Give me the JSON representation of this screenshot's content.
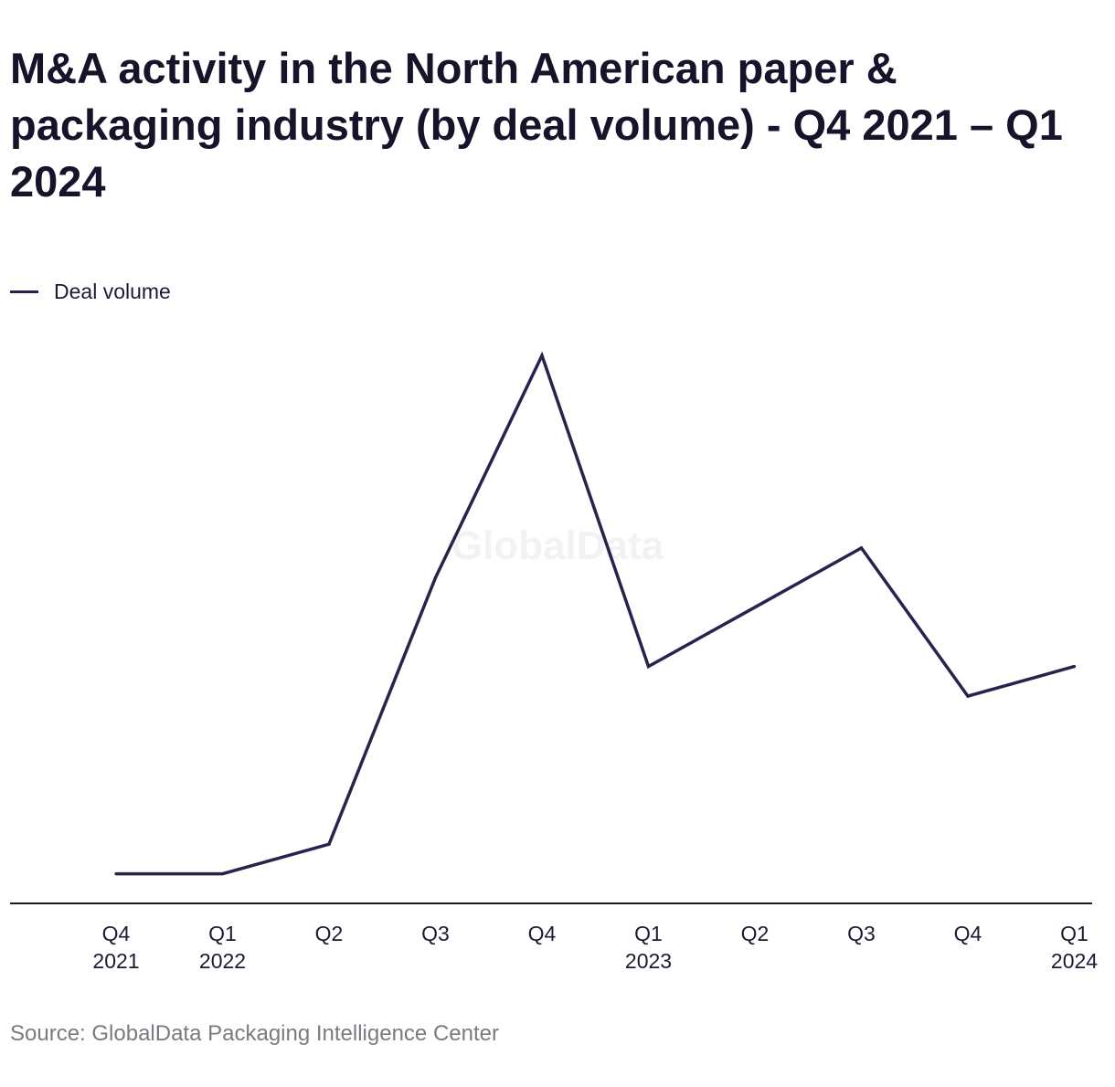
{
  "title": "M&A activity in the North American paper & packaging industry (by deal volume) - Q4 2021 – Q1 2024",
  "source": "Source: GlobalData Packaging Intelligence Center",
  "watermark": "GlobalData",
  "colors": {
    "line": "#2d1f4e",
    "axis": "#1a1a1a",
    "text": "#1e1a33",
    "source": "#7a7a80"
  },
  "chart_data": {
    "type": "line",
    "title": "M&A activity in the North American paper & packaging industry (by deal volume) - Q4 2021 – Q1 2024",
    "categories": [
      [
        "Q4",
        "2021"
      ],
      [
        "Q1",
        "2022"
      ],
      [
        "Q2",
        ""
      ],
      [
        "Q3",
        ""
      ],
      [
        "Q4",
        ""
      ],
      [
        "Q1",
        "2023"
      ],
      [
        "Q2",
        ""
      ],
      [
        "Q3",
        ""
      ],
      [
        "Q4",
        ""
      ],
      [
        "Q1",
        "2024"
      ]
    ],
    "series": [
      {
        "name": "Deal volume",
        "values": [
          1,
          1,
          2,
          11,
          18.5,
          8,
          10,
          12,
          7,
          8
        ]
      }
    ],
    "ylim": [
      0,
      19
    ],
    "grid": false,
    "y_axis_labels": false,
    "legend": "top-left"
  }
}
